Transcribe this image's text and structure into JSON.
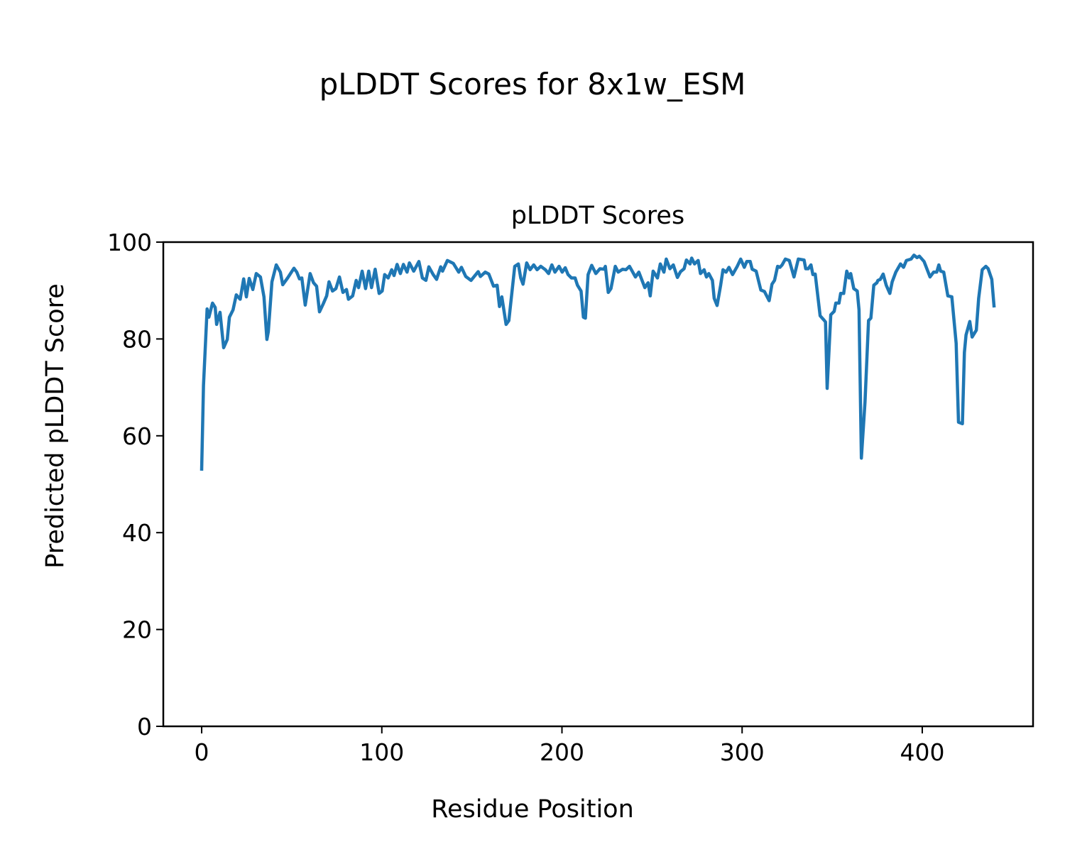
{
  "chart_data": {
    "type": "line",
    "suptitle": "pLDDT Scores for 8x1w_ESM",
    "title": "pLDDT Scores",
    "xlabel": "Residue Position",
    "ylabel": "Predicted pLDDT Score",
    "xlim": [
      -21.3,
      461.5
    ],
    "ylim": [
      0,
      100
    ],
    "xticks": [
      0,
      100,
      200,
      300,
      400
    ],
    "yticks": [
      0,
      20,
      40,
      60,
      80,
      100
    ],
    "grid": false,
    "legend": "none",
    "series": [
      {
        "name": "pLDDT",
        "color": "#1f77b4",
        "points": [
          [
            0,
            52.8
          ],
          [
            1,
            70.4
          ],
          [
            3,
            86.2
          ],
          [
            4,
            84.5
          ],
          [
            6,
            87.4
          ],
          [
            7.5,
            86.5
          ],
          [
            8.3,
            83
          ],
          [
            9,
            84
          ],
          [
            10.2,
            85.5
          ],
          [
            12.2,
            78.2
          ],
          [
            14.2,
            79.9
          ],
          [
            15.4,
            84.5
          ],
          [
            17.4,
            86
          ],
          [
            19.2,
            89.1
          ],
          [
            21.4,
            88.2
          ],
          [
            23.3,
            92.4
          ],
          [
            24.8,
            88.7
          ],
          [
            26.4,
            92.5
          ],
          [
            28.4,
            90.2
          ],
          [
            30.3,
            93.5
          ],
          [
            32.6,
            92.8
          ],
          [
            34.6,
            88.7
          ],
          [
            36.2,
            79.9
          ],
          [
            37,
            81.5
          ],
          [
            39,
            91.8
          ],
          [
            41.4,
            95.3
          ],
          [
            43.7,
            93.8
          ],
          [
            45,
            91.2
          ],
          [
            47.7,
            92.6
          ],
          [
            51.2,
            94.6
          ],
          [
            52.8,
            93.8
          ],
          [
            54.3,
            92.4
          ],
          [
            55.6,
            92.6
          ],
          [
            57.5,
            87
          ],
          [
            60.2,
            93.5
          ],
          [
            62.1,
            91.6
          ],
          [
            63.8,
            90.9
          ],
          [
            65.4,
            85.6
          ],
          [
            67.4,
            87.2
          ],
          [
            69.4,
            88.9
          ],
          [
            70.7,
            91.8
          ],
          [
            72.6,
            89.9
          ],
          [
            74.5,
            90.4
          ],
          [
            76.5,
            92.8
          ],
          [
            78.4,
            89.6
          ],
          [
            80.4,
            90.2
          ],
          [
            81.5,
            88.2
          ],
          [
            83.8,
            88.9
          ],
          [
            85.8,
            92.1
          ],
          [
            87.1,
            90.6
          ],
          [
            89.1,
            94
          ],
          [
            91,
            90.4
          ],
          [
            92.7,
            94
          ],
          [
            94.3,
            90.6
          ],
          [
            96.3,
            94.4
          ],
          [
            98.5,
            89.4
          ],
          [
            100.2,
            89.9
          ],
          [
            101.6,
            93.3
          ],
          [
            103.5,
            92.6
          ],
          [
            105.5,
            94.3
          ],
          [
            106.8,
            93.1
          ],
          [
            108.5,
            95.4
          ],
          [
            110.3,
            93.5
          ],
          [
            112,
            95.4
          ],
          [
            114,
            93.8
          ],
          [
            115.3,
            95.7
          ],
          [
            117.7,
            94
          ],
          [
            120.6,
            96
          ],
          [
            122.5,
            92.6
          ],
          [
            124.5,
            92.1
          ],
          [
            126.1,
            94.9
          ],
          [
            128.5,
            93.3
          ],
          [
            130.4,
            92.3
          ],
          [
            132.7,
            94.9
          ],
          [
            133.7,
            94
          ],
          [
            136.4,
            96.2
          ],
          [
            139.7,
            95.6
          ],
          [
            142.7,
            93.8
          ],
          [
            144.2,
            94.8
          ],
          [
            146.6,
            92.9
          ],
          [
            149.5,
            92.1
          ],
          [
            153.5,
            93.9
          ],
          [
            154.7,
            92.9
          ],
          [
            157.4,
            93.8
          ],
          [
            159.4,
            93.4
          ],
          [
            162,
            90.9
          ],
          [
            164,
            91.1
          ],
          [
            165.3,
            86.7
          ],
          [
            166.6,
            88.7
          ],
          [
            169,
            83
          ],
          [
            170.5,
            83.8
          ],
          [
            173.8,
            95
          ],
          [
            175.8,
            95.5
          ],
          [
            177.1,
            92.6
          ],
          [
            178.4,
            91.3
          ],
          [
            180.4,
            95.7
          ],
          [
            182.3,
            94.3
          ],
          [
            184.3,
            95.3
          ],
          [
            186.2,
            94.3
          ],
          [
            188.2,
            95
          ],
          [
            190.8,
            94.3
          ],
          [
            192.6,
            93.5
          ],
          [
            194.4,
            95.3
          ],
          [
            196.1,
            93.8
          ],
          [
            198.4,
            95
          ],
          [
            200.1,
            93.8
          ],
          [
            201.8,
            94.7
          ],
          [
            203.4,
            93.3
          ],
          [
            205.3,
            92.6
          ],
          [
            207.3,
            92.6
          ],
          [
            208.6,
            91.1
          ],
          [
            210.6,
            89.9
          ],
          [
            211.9,
            84.5
          ],
          [
            213,
            84.3
          ],
          [
            214.5,
            93.3
          ],
          [
            216.5,
            95.2
          ],
          [
            218.8,
            93.5
          ],
          [
            221.1,
            94.5
          ],
          [
            223.3,
            94.4
          ],
          [
            224.1,
            95
          ],
          [
            225.7,
            89.6
          ],
          [
            227.2,
            90.4
          ],
          [
            229.6,
            95
          ],
          [
            231.2,
            93.8
          ],
          [
            233.6,
            94.4
          ],
          [
            235.5,
            94.3
          ],
          [
            237.5,
            95
          ],
          [
            240.8,
            92.8
          ],
          [
            242.7,
            93.8
          ],
          [
            246,
            90.6
          ],
          [
            247.8,
            91.6
          ],
          [
            249,
            88.9
          ],
          [
            250.6,
            94
          ],
          [
            253,
            92.6
          ],
          [
            254.6,
            95.5
          ],
          [
            256.6,
            93.8
          ],
          [
            257.9,
            96.5
          ],
          [
            259.9,
            94.5
          ],
          [
            261.8,
            95.3
          ],
          [
            264.1,
            92.7
          ],
          [
            265.8,
            93.9
          ],
          [
            267.8,
            94.5
          ],
          [
            269.1,
            96.3
          ],
          [
            271.1,
            95.5
          ],
          [
            272,
            96.7
          ],
          [
            273.6,
            95.5
          ],
          [
            275.6,
            96.2
          ],
          [
            276.9,
            93.5
          ],
          [
            278.9,
            94.3
          ],
          [
            280.2,
            92.8
          ],
          [
            281.5,
            93.5
          ],
          [
            283.5,
            92.1
          ],
          [
            284.5,
            88.4
          ],
          [
            286.1,
            86.9
          ],
          [
            288.1,
            91.1
          ],
          [
            289.4,
            94.3
          ],
          [
            291.1,
            93.8
          ],
          [
            292.7,
            94.8
          ],
          [
            294.7,
            93.3
          ],
          [
            297.3,
            95
          ],
          [
            299.2,
            96.5
          ],
          [
            301.2,
            94.8
          ],
          [
            302.6,
            96
          ],
          [
            304.5,
            96
          ],
          [
            305.6,
            94.4
          ],
          [
            307.8,
            94
          ],
          [
            310.4,
            90.1
          ],
          [
            312.4,
            89.8
          ],
          [
            315,
            87.9
          ],
          [
            316.6,
            91.3
          ],
          [
            318,
            92.1
          ],
          [
            319.7,
            95
          ],
          [
            321,
            94.8
          ],
          [
            322.2,
            95.3
          ],
          [
            324,
            96.5
          ],
          [
            326.2,
            96.2
          ],
          [
            328.8,
            92.8
          ],
          [
            331.2,
            96.5
          ],
          [
            334.4,
            96.3
          ],
          [
            335.3,
            94.5
          ],
          [
            336.7,
            94.5
          ],
          [
            338.2,
            95.3
          ],
          [
            339.3,
            93.3
          ],
          [
            340.6,
            93.4
          ],
          [
            343.3,
            84.8
          ],
          [
            345.2,
            84
          ],
          [
            346.3,
            83.5
          ],
          [
            347.2,
            69.8
          ],
          [
            349.2,
            85
          ],
          [
            351.1,
            85.7
          ],
          [
            352,
            87.4
          ],
          [
            353.8,
            87.4
          ],
          [
            354.7,
            89.4
          ],
          [
            356.4,
            89.4
          ],
          [
            358.1,
            94
          ],
          [
            359.4,
            92.6
          ],
          [
            360.3,
            93.5
          ],
          [
            362,
            90.4
          ],
          [
            363.9,
            89.9
          ],
          [
            364.9,
            86
          ],
          [
            366.2,
            55.4
          ],
          [
            368.2,
            66.9
          ],
          [
            370.2,
            83.8
          ],
          [
            371.5,
            84.3
          ],
          [
            373.1,
            91.1
          ],
          [
            374.8,
            91.6
          ],
          [
            375.4,
            92.1
          ],
          [
            376.7,
            92.3
          ],
          [
            378.3,
            93.4
          ],
          [
            380,
            91.1
          ],
          [
            382,
            89.4
          ],
          [
            383.3,
            91.8
          ],
          [
            385.3,
            93.8
          ],
          [
            387.9,
            95.5
          ],
          [
            389.6,
            94.8
          ],
          [
            391.2,
            96.2
          ],
          [
            393.8,
            96.5
          ],
          [
            395.4,
            97.3
          ],
          [
            397.1,
            96.8
          ],
          [
            398.4,
            97.1
          ],
          [
            401,
            96
          ],
          [
            404.3,
            92.8
          ],
          [
            406.3,
            93.8
          ],
          [
            408,
            93.8
          ],
          [
            409.2,
            95.3
          ],
          [
            410.2,
            94
          ],
          [
            411.9,
            93.8
          ],
          [
            414.2,
            88.9
          ],
          [
            416.4,
            88.7
          ],
          [
            418.8,
            79.1
          ],
          [
            420.1,
            62.8
          ],
          [
            422.3,
            62.5
          ],
          [
            423.4,
            77.2
          ],
          [
            424.3,
            80.8
          ],
          [
            426.4,
            83.6
          ],
          [
            427.7,
            80.4
          ],
          [
            430,
            81.8
          ],
          [
            431.3,
            88.4
          ],
          [
            433.3,
            94.3
          ],
          [
            435.3,
            95
          ],
          [
            436.6,
            94.5
          ],
          [
            438.6,
            92.3
          ],
          [
            439.9,
            86.5
          ]
        ]
      }
    ]
  }
}
